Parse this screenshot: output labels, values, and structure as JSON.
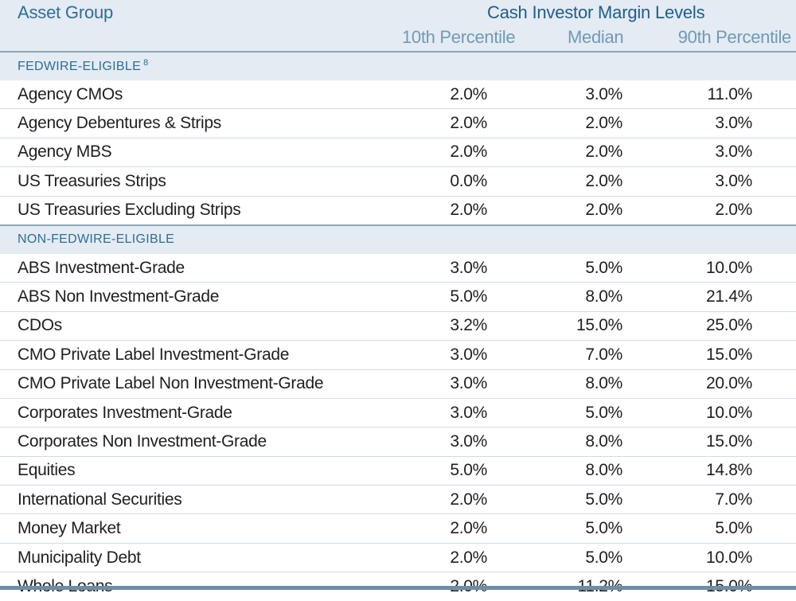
{
  "header": {
    "asset_group": "Asset Group",
    "group_title": "Cash Investor Margin Levels",
    "columns": [
      "10th Percentile",
      "Median",
      "90th Percentile"
    ]
  },
  "sections": [
    {
      "label": "FEDWIRE-ELIGIBLE",
      "footnote": "8",
      "rows": [
        {
          "name": "Agency CMOs",
          "p10": "2.0%",
          "median": "3.0%",
          "p90": "11.0%"
        },
        {
          "name": "Agency Debentures & Strips",
          "p10": "2.0%",
          "median": "2.0%",
          "p90": "3.0%"
        },
        {
          "name": "Agency MBS",
          "p10": "2.0%",
          "median": "2.0%",
          "p90": "3.0%"
        },
        {
          "name": "US Treasuries Strips",
          "p10": "0.0%",
          "median": "2.0%",
          "p90": "3.0%"
        },
        {
          "name": "US Treasuries Excluding Strips",
          "p10": "2.0%",
          "median": "2.0%",
          "p90": "2.0%"
        }
      ]
    },
    {
      "label": "NON-FEDWIRE-ELIGIBLE",
      "footnote": "",
      "rows": [
        {
          "name": "ABS Investment-Grade",
          "p10": "3.0%",
          "median": "5.0%",
          "p90": "10.0%"
        },
        {
          "name": "ABS Non Investment-Grade",
          "p10": "5.0%",
          "median": "8.0%",
          "p90": "21.4%"
        },
        {
          "name": "CDOs",
          "p10": "3.2%",
          "median": "15.0%",
          "p90": "25.0%"
        },
        {
          "name": "CMO Private Label Investment-Grade",
          "p10": "3.0%",
          "median": "7.0%",
          "p90": "15.0%"
        },
        {
          "name": "CMO Private Label Non Investment-Grade",
          "p10": "3.0%",
          "median": "8.0%",
          "p90": "20.0%"
        },
        {
          "name": "Corporates Investment-Grade",
          "p10": "3.0%",
          "median": "5.0%",
          "p90": "10.0%"
        },
        {
          "name": "Corporates Non Investment-Grade",
          "p10": "3.0%",
          "median": "8.0%",
          "p90": "15.0%"
        },
        {
          "name": "Equities",
          "p10": "5.0%",
          "median": "8.0%",
          "p90": "14.8%"
        },
        {
          "name": "International Securities",
          "p10": "2.0%",
          "median": "5.0%",
          "p90": "7.0%"
        },
        {
          "name": "Money Market",
          "p10": "2.0%",
          "median": "5.0%",
          "p90": "5.0%"
        },
        {
          "name": "Municipality Debt",
          "p10": "2.0%",
          "median": "5.0%",
          "p90": "10.0%"
        },
        {
          "name": "Whole Loans",
          "p10": "2.0%",
          "median": "11.2%",
          "p90": "15.0%"
        }
      ]
    }
  ],
  "colors": {
    "header_bg": "#e4ebf2",
    "header_text": "#2f6d98",
    "column_text": "#6f9ab8",
    "rule": "#6d8ea8"
  }
}
